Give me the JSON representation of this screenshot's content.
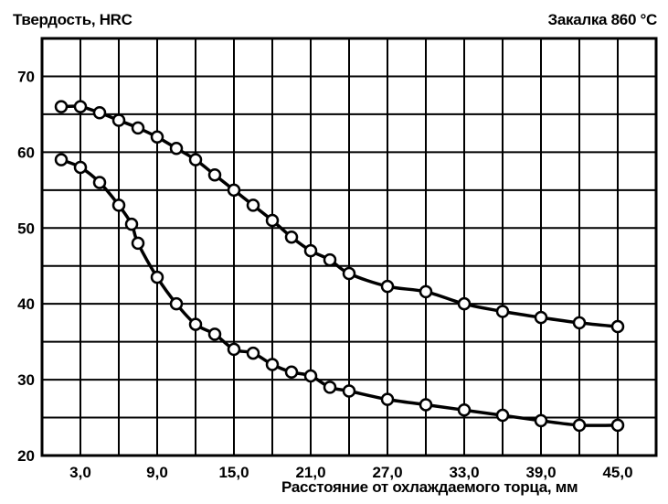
{
  "chart_data": {
    "type": "line",
    "ylabel": "Твердость, HRC",
    "corner_label": "Закалка 860 °C",
    "xlabel": "Расстояние от охлаждаемого торца, мм",
    "ylim": [
      20,
      75
    ],
    "xlim": [
      0,
      48
    ],
    "y_ticks": [
      20,
      30,
      40,
      50,
      60,
      70
    ],
    "x_ticks": [
      3,
      9,
      15,
      21,
      27,
      33,
      39,
      45
    ],
    "x_tick_labels": [
      "3,0",
      "9,0",
      "15,0",
      "21,0",
      "27,0",
      "33,0",
      "39,0",
      "45,0"
    ],
    "grid": true,
    "series": [
      {
        "x": [
          1.5,
          3,
          4.5,
          6,
          7.5,
          9,
          10.5,
          12,
          13.5,
          15,
          16.5,
          18,
          19.5,
          21,
          22.5,
          24,
          27,
          30,
          33,
          36,
          39,
          42,
          45
        ],
        "y": [
          66,
          66,
          65.2,
          64.2,
          63.2,
          62,
          60.5,
          59,
          57,
          55,
          53,
          51,
          48.8,
          47,
          45.8,
          44,
          42.3,
          41.6,
          40,
          39,
          38.2,
          37.5,
          37
        ]
      },
      {
        "x": [
          1.5,
          3,
          4.5,
          6,
          7,
          7.5,
          9,
          10.5,
          12,
          13.5,
          15,
          16.5,
          18,
          19.5,
          21,
          22.5,
          24,
          27,
          30,
          33,
          36,
          39,
          42,
          45
        ],
        "y": [
          59,
          58,
          56,
          53,
          50.5,
          48,
          43.5,
          40,
          37.3,
          36,
          34,
          33.5,
          32,
          31,
          30.5,
          29,
          28.5,
          27.4,
          26.7,
          26,
          25.3,
          24.6,
          24,
          24
        ]
      }
    ]
  }
}
